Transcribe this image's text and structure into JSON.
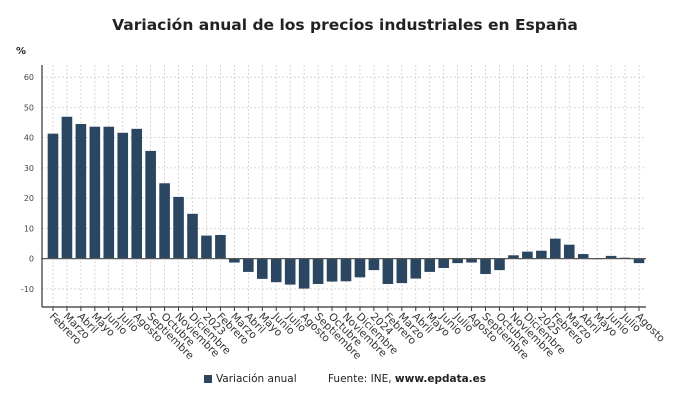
{
  "chart_data": {
    "type": "bar",
    "title": "Variación anual de los precios industriales en España",
    "ylabel": "%",
    "ylim": [
      -16,
      64
    ],
    "yticks": [
      -10,
      0,
      10,
      20,
      30,
      40,
      50,
      60
    ],
    "grid": true,
    "legend_position": "bottom",
    "color": "#2b4660",
    "categories": [
      "Febrero",
      "Marzo",
      "Abril",
      "Mayo",
      "Junio",
      "Julio",
      "Agosto",
      "Septiembre",
      "Octubre",
      "Noviembre",
      "Diciembre",
      "2023",
      "Febrero",
      "Marzo",
      "Abril",
      "Mayo",
      "Junio",
      "Julio",
      "Agosto",
      "Septiembre",
      "Octubre",
      "Noviembre",
      "Diciembre",
      "2024",
      "Febrero",
      "Marzo",
      "Abril",
      "Mayo",
      "Junio",
      "Julio",
      "Agosto",
      "Septiembre",
      "Octubre",
      "Noviembre",
      "Diciembre",
      "2025",
      "Febrero",
      "Marzo",
      "Abril",
      "Mayo",
      "Junio",
      "Julio",
      "Agosto"
    ],
    "series": [
      {
        "name": "Variación anual",
        "values": [
          41.3,
          46.9,
          44.5,
          43.6,
          43.6,
          41.6,
          42.9,
          35.6,
          24.9,
          20.4,
          14.8,
          7.6,
          7.8,
          -1.3,
          -4.4,
          -6.7,
          -7.8,
          -8.6,
          -9.9,
          -8.4,
          -7.6,
          -7.5,
          -6.2,
          -3.8,
          -8.4,
          -8.1,
          -6.6,
          -4.4,
          -3.1,
          -1.5,
          -1.3,
          -5.1,
          -3.8,
          1.1,
          2.3,
          2.6,
          6.6,
          4.6,
          1.5,
          0.0,
          0.9,
          0.3,
          -1.5
        ]
      }
    ]
  },
  "legend": {
    "label": "Variación anual"
  },
  "source": {
    "prefix": "Fuente: INE, ",
    "site": "www.epdata.es"
  }
}
